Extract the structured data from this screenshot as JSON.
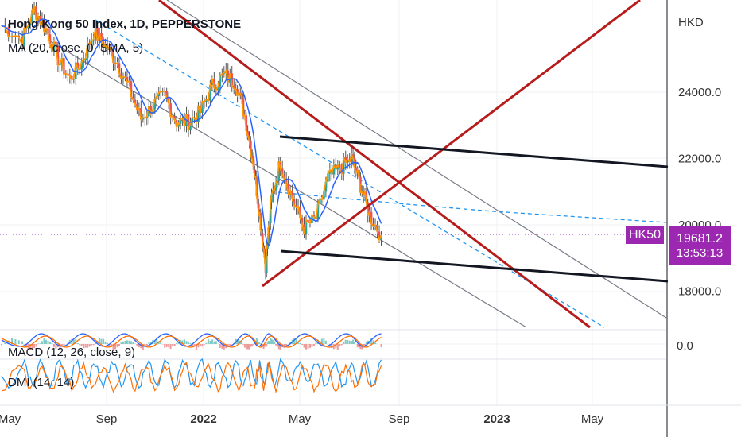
{
  "header": {
    "title": "Hong Kong 50 Index, 1D, PEPPERSTONE",
    "ma_label": "MA (20, close, 0, SMA, 5)",
    "currency": "HKD"
  },
  "indicators": {
    "macd_label": "MACD (12, 26, close, 9)",
    "dmi_label": "DMI (14, 14)",
    "macd_zero_label": "0.0"
  },
  "price_badge": {
    "symbol": "HK50",
    "price": "19681.2",
    "countdown": "13:53:13"
  },
  "colors": {
    "candle_up": "#26a69a",
    "candle_down": "#ef5350",
    "price_line": "#ff9800",
    "ma_line": "#2962ff",
    "red_trend": "#b71c1c",
    "black_trend": "#131722",
    "gray_channel": "#787b86",
    "dashed_blue": "#2196f3",
    "badge_purple": "#9c27b0"
  },
  "chart_data": {
    "type": "line",
    "title": "Hong Kong 50 Index, 1D, PEPPERSTONE",
    "ylabel": "HKD",
    "y_ticks": [
      24000,
      22000,
      20000,
      18000
    ],
    "y_tick_labels": [
      "24000.0",
      "22000.0",
      "20000.0",
      "18000.0"
    ],
    "x_tick_labels": [
      "May",
      "Sep",
      "2022",
      "May",
      "Sep",
      "2023",
      "May"
    ],
    "ylim": [
      16700,
      26700
    ],
    "last_price": 19681.2,
    "series": [
      {
        "values": [
          [
            2021.33,
            26000
          ],
          [
            2021.4,
            25600
          ],
          [
            2021.44,
            26500
          ],
          [
            2021.48,
            25900
          ],
          [
            2021.52,
            25000
          ],
          [
            2021.56,
            24400
          ],
          [
            2021.6,
            24900
          ],
          [
            2021.64,
            25800
          ],
          [
            2021.68,
            25400
          ],
          [
            2021.72,
            24900
          ],
          [
            2021.76,
            24100
          ],
          [
            2021.8,
            23200
          ],
          [
            2021.84,
            23600
          ],
          [
            2021.88,
            23900
          ],
          [
            2021.92,
            23100
          ],
          [
            2021.96,
            23100
          ],
          [
            2022.0,
            23400
          ],
          [
            2022.04,
            24200
          ],
          [
            2022.08,
            24500
          ],
          [
            2022.12,
            24300
          ],
          [
            2022.15,
            23300
          ],
          [
            2022.18,
            21800
          ],
          [
            2022.2,
            20300
          ],
          [
            2022.22,
            18800
          ],
          [
            2022.24,
            20800
          ],
          [
            2022.27,
            21900
          ],
          [
            2022.31,
            20800
          ],
          [
            2022.35,
            19900
          ],
          [
            2022.39,
            20200
          ],
          [
            2022.43,
            21400
          ],
          [
            2022.47,
            21700
          ],
          [
            2022.51,
            22000
          ],
          [
            2022.54,
            21200
          ],
          [
            2022.57,
            20300
          ],
          [
            2022.61,
            19681
          ]
        ]
      }
    ]
  }
}
